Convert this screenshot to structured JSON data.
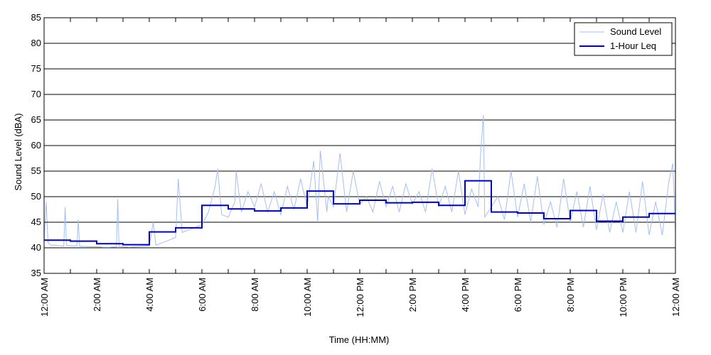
{
  "chart_data": {
    "type": "line",
    "xlabel": "Time (HH:MM)",
    "ylabel": "Sound Level (dBA)",
    "x_unit": "hours",
    "xlim": [
      0,
      24
    ],
    "ylim": [
      35,
      85
    ],
    "y_ticks": [
      35,
      40,
      45,
      50,
      55,
      60,
      65,
      70,
      75,
      80,
      85
    ],
    "x_ticks": [
      {
        "x": 0,
        "label": "12:00 AM"
      },
      {
        "x": 2,
        "label": "2:00 AM"
      },
      {
        "x": 4,
        "label": "4:00 AM"
      },
      {
        "x": 6,
        "label": "6:00 AM"
      },
      {
        "x": 8,
        "label": "8:00 AM"
      },
      {
        "x": 10,
        "label": "10:00 AM"
      },
      {
        "x": 12,
        "label": "12:00 PM"
      },
      {
        "x": 14,
        "label": "2:00 PM"
      },
      {
        "x": 16,
        "label": "4:00 PM"
      },
      {
        "x": 18,
        "label": "6:00 PM"
      },
      {
        "x": 20,
        "label": "8:00 PM"
      },
      {
        "x": 22,
        "label": "10:00 PM"
      },
      {
        "x": 24,
        "label": "12:00 AM"
      }
    ],
    "minor_x_ticks": [
      1,
      3,
      5,
      7,
      9,
      11,
      13,
      15,
      17,
      19,
      21,
      23
    ],
    "grid": "horizontal",
    "legend_position": "top-right",
    "series": [
      {
        "name": "Sound Level",
        "color": "#a4bff0",
        "x": [
          0,
          0.08,
          0.15,
          0.25,
          0.5,
          0.75,
          0.8,
          0.85,
          1.0,
          1.25,
          1.3,
          1.35,
          1.5,
          1.75,
          2.0,
          2.25,
          2.5,
          2.75,
          2.8,
          2.85,
          3.0,
          3.25,
          3.5,
          3.75,
          4.0,
          4.15,
          4.25,
          4.5,
          4.75,
          5.0,
          5.1,
          5.25,
          5.5,
          5.75,
          6.0,
          6.25,
          6.5,
          6.6,
          6.75,
          7.0,
          7.25,
          7.3,
          7.5,
          7.75,
          8.0,
          8.25,
          8.5,
          8.75,
          9.0,
          9.25,
          9.5,
          9.75,
          10.0,
          10.25,
          10.4,
          10.5,
          10.75,
          10.8,
          11.0,
          11.25,
          11.5,
          11.75,
          12.0,
          12.25,
          12.5,
          12.75,
          13.0,
          13.25,
          13.5,
          13.75,
          14.0,
          14.25,
          14.5,
          14.75,
          15.0,
          15.25,
          15.5,
          15.75,
          16.0,
          16.25,
          16.5,
          16.6,
          16.7,
          16.75,
          17.0,
          17.25,
          17.5,
          17.75,
          18.0,
          18.25,
          18.5,
          18.75,
          19.0,
          19.25,
          19.5,
          19.75,
          20.0,
          20.25,
          20.5,
          20.75,
          21.0,
          21.25,
          21.5,
          21.75,
          22.0,
          22.25,
          22.5,
          22.75,
          23.0,
          23.25,
          23.5,
          23.75,
          23.9,
          24.0
        ],
        "y": [
          41,
          49,
          41,
          40.5,
          40.5,
          40.3,
          48,
          40.5,
          40.4,
          40.4,
          45.5,
          40.3,
          40.3,
          40.2,
          40.2,
          40.1,
          40.1,
          40.2,
          49.5,
          40.3,
          40.2,
          40.1,
          40.2,
          40.3,
          40.4,
          45,
          40.5,
          41,
          41.5,
          42,
          53.5,
          43,
          43.5,
          44,
          44.5,
          47,
          52,
          55.5,
          46.5,
          46,
          49,
          55,
          47,
          51,
          48,
          52.5,
          47,
          51,
          46.5,
          52,
          47.5,
          53.5,
          48,
          57,
          45,
          59,
          47,
          50,
          48,
          58.5,
          47,
          55,
          48.5,
          50,
          47,
          53,
          48,
          52,
          47,
          52.5,
          48.5,
          51,
          47,
          55.5,
          48,
          52,
          47,
          55,
          46.5,
          51.5,
          48,
          59,
          66,
          46,
          48,
          50,
          45.5,
          55,
          46,
          52.5,
          45,
          54,
          44.5,
          49,
          44,
          53.5,
          45,
          51,
          44,
          52,
          43.5,
          50.5,
          43,
          49,
          43,
          51,
          43,
          53,
          42.5,
          49,
          42.5,
          53,
          56.5,
          43
        ]
      },
      {
        "name": "1-Hour Leq",
        "color": "#0000c0",
        "step": true,
        "x": [
          0,
          1,
          2,
          3,
          4,
          5,
          6,
          7,
          8,
          9,
          10,
          11,
          12,
          13,
          14,
          15,
          16,
          17,
          18,
          19,
          20,
          21,
          22,
          23,
          24
        ],
        "y": [
          41.5,
          41.3,
          40.8,
          40.6,
          43.1,
          43.9,
          48.3,
          47.6,
          47.2,
          47.8,
          51.1,
          48.6,
          49.3,
          48.8,
          48.9,
          48.3,
          53.1,
          47.0,
          46.8,
          45.7,
          47.3,
          45.2,
          46.0,
          46.7,
          46.7
        ]
      }
    ]
  }
}
